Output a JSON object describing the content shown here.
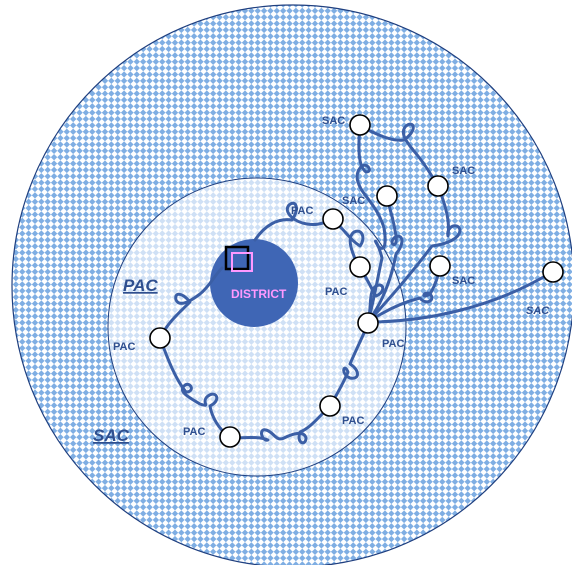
{
  "diagram": {
    "district_label": "DISTRICT",
    "zones": {
      "inner_label": "PAC",
      "outer_label": "SAC"
    },
    "node_labels": {
      "pac_top": "PAC",
      "pac_mid": "PAC",
      "pac_left": "PAC",
      "pac_hub": "PAC",
      "pac_bottom_right": "PAC",
      "pac_bottom_left": "PAC",
      "sac_top": "SAC",
      "sac_mid": "SAC",
      "sac_right_upper": "SAC",
      "sac_right_lower": "SAC",
      "sac_far_right": "SAC"
    },
    "colors": {
      "zone_fill": "#7FAEE3",
      "check_light": "#DCE9F8",
      "district_fill": "#3F66B5",
      "cable": "#3B5FA6",
      "district_text": "#FF99FF"
    }
  }
}
